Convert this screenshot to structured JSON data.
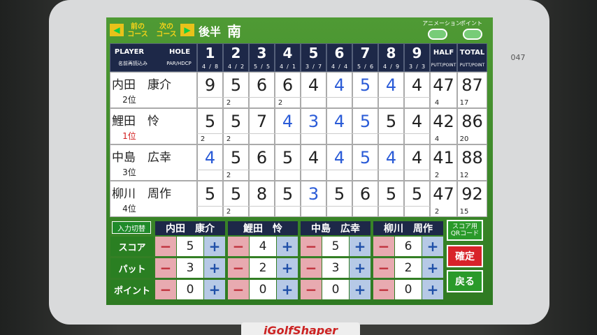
{
  "header": {
    "prev": [
      "前の",
      "コース"
    ],
    "next": [
      "次の",
      "コース"
    ],
    "half": "後半",
    "course": "南",
    "toggles": [
      "アニメーション",
      "ポイント"
    ],
    "device_number": "047"
  },
  "table": {
    "player_label": "PLAYER",
    "hole_label": "HOLE",
    "reload_label": "名前再読込み",
    "par_label": "PAR/HDCP",
    "holes": [
      {
        "number": 1,
        "par": 4,
        "hdcp": 8
      },
      {
        "number": 2,
        "par": 4,
        "hdcp": 2
      },
      {
        "number": 3,
        "par": 5,
        "hdcp": 5
      },
      {
        "number": 4,
        "par": 4,
        "hdcp": 1
      },
      {
        "number": 5,
        "par": 3,
        "hdcp": 7
      },
      {
        "number": 6,
        "par": 4,
        "hdcp": 4
      },
      {
        "number": 7,
        "par": 5,
        "hdcp": 6
      },
      {
        "number": 8,
        "par": 4,
        "hdcp": 9
      },
      {
        "number": 9,
        "par": 3,
        "hdcp": 3
      }
    ],
    "half_label": "HALF",
    "total_label": "TOTAL",
    "putt_point_label": "PUTT/POINT",
    "players": [
      {
        "name": "内田　康介",
        "rank": "2位",
        "rank_color": "#222",
        "scores": [
          9,
          5,
          6,
          6,
          4,
          4,
          5,
          4,
          4
        ],
        "putts": [
          null,
          2,
          null,
          2,
          null,
          null,
          null,
          null,
          null
        ],
        "half": 47,
        "total": 87,
        "half_putt": 4,
        "total_putt": 17,
        "score_colors": [
          "#222",
          "#222",
          "#222",
          "#222",
          "#222",
          "#2a5bd7",
          "#2a5bd7",
          "#2a5bd7",
          "#222"
        ]
      },
      {
        "name": "鯉田　怜",
        "rank": "1位",
        "rank_color": "#d21c1c",
        "scores": [
          5,
          5,
          7,
          4,
          3,
          4,
          5,
          5,
          4
        ],
        "putts": [
          2,
          2,
          null,
          null,
          null,
          null,
          null,
          null,
          null
        ],
        "half": 42,
        "total": 86,
        "half_putt": 4,
        "total_putt": 20,
        "score_colors": [
          "#222",
          "#222",
          "#222",
          "#2a5bd7",
          "#2a5bd7",
          "#2a5bd7",
          "#2a5bd7",
          "#222",
          "#222"
        ]
      },
      {
        "name": "中島　広幸",
        "rank": "3位",
        "rank_color": "#222",
        "scores": [
          4,
          5,
          6,
          5,
          4,
          4,
          5,
          4,
          4
        ],
        "putts": [
          null,
          2,
          null,
          null,
          null,
          null,
          null,
          null,
          null
        ],
        "half": 41,
        "total": 88,
        "half_putt": 2,
        "total_putt": 12,
        "score_colors": [
          "#2a5bd7",
          "#222",
          "#222",
          "#222",
          "#222",
          "#2a5bd7",
          "#2a5bd7",
          "#2a5bd7",
          "#222"
        ]
      },
      {
        "name": "柳川　周作",
        "rank": "4位",
        "rank_color": "#222",
        "scores": [
          5,
          5,
          8,
          5,
          3,
          5,
          6,
          5,
          5
        ],
        "putts": [
          null,
          2,
          null,
          null,
          null,
          null,
          null,
          null,
          null
        ],
        "half": 47,
        "total": 92,
        "half_putt": 2,
        "total_putt": 15,
        "score_colors": [
          "#222",
          "#222",
          "#222",
          "#222",
          "#2a5bd7",
          "#222",
          "#222",
          "#222",
          "#222"
        ]
      }
    ]
  },
  "input": {
    "switch_label": "入力切替",
    "row_labels": [
      "スコア",
      "パット",
      "ポイント"
    ],
    "minus": "−",
    "plus": "+",
    "players": [
      {
        "name": "内田　康介",
        "score": 5,
        "putt": 3,
        "point": 0
      },
      {
        "name": "鯉田　怜",
        "score": 4,
        "putt": 2,
        "point": 0
      },
      {
        "name": "中島　広幸",
        "score": 5,
        "putt": 3,
        "point": 0
      },
      {
        "name": "柳川　周作",
        "score": 6,
        "putt": 2,
        "point": 0
      }
    ],
    "qr_label": "スコア用QRコード",
    "confirm": "確定",
    "back": "戻る"
  },
  "footer": {
    "brand": "iGolfShaper"
  }
}
